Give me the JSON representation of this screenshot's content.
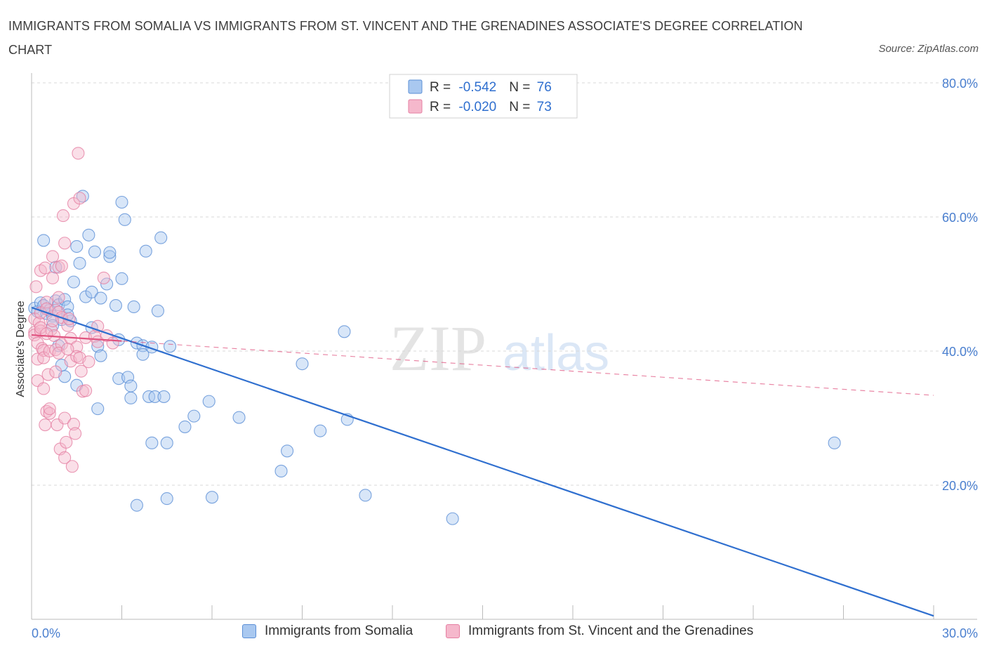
{
  "title": "IMMIGRANTS FROM SOMALIA VS IMMIGRANTS FROM ST. VINCENT AND THE GRENADINES ASSOCIATE'S DEGREE CORRELATION CHART",
  "source": "Source: ZipAtlas.com",
  "watermark": {
    "zip": "ZIP",
    "atlas": "atlas"
  },
  "colors": {
    "blue_fill": "#a9c8f0",
    "blue_stroke": "#5b8fd6",
    "blue_line": "#2f6fcf",
    "pink_fill": "#f5b8cc",
    "pink_stroke": "#e57fa2",
    "pink_line": "#e0527f",
    "axis_text": "#4a7fcf",
    "grid": "#d8d8d8"
  },
  "chart_data": {
    "type": "scatter",
    "title": "IMMIGRANTS FROM SOMALIA VS IMMIGRANTS FROM ST. VINCENT AND THE GRENADINES ASSOCIATE'S DEGREE CORRELATION CHART",
    "xlabel": "",
    "ylabel": "Associate's Degree",
    "xlim": [
      0,
      30
    ],
    "ylim": [
      0,
      80
    ],
    "x_tick_labels": [
      "0.0%",
      "30.0%"
    ],
    "y_ticks": [
      20,
      40,
      60,
      80
    ],
    "y_tick_labels": [
      "20.0%",
      "40.0%",
      "60.0%",
      "80.0%"
    ],
    "grid": true,
    "legend_stats": [
      {
        "r_label": "R = ",
        "r_value": "-0.542",
        "n_label": "N = ",
        "n_value": "76"
      },
      {
        "r_label": "R = ",
        "r_value": "-0.020",
        "n_label": "N = ",
        "n_value": "73"
      }
    ],
    "series": [
      {
        "name": "Immigrants from Somalia",
        "color": "blue",
        "trend": {
          "x": [
            0,
            30
          ],
          "y": [
            46.5,
            0.5
          ],
          "style": "solid"
        },
        "points": [
          [
            0.1,
            46.4
          ],
          [
            0.2,
            45.9
          ],
          [
            0.3,
            47.2
          ],
          [
            0.4,
            46.8
          ],
          [
            0.5,
            45.6
          ],
          [
            0.6,
            46.1
          ],
          [
            0.7,
            45.2
          ],
          [
            0.8,
            47.5
          ],
          [
            0.9,
            46.9
          ],
          [
            1.0,
            44.7
          ],
          [
            0.4,
            56.5
          ],
          [
            0.8,
            52.5
          ],
          [
            1.1,
            47.7
          ],
          [
            1.2,
            46.6
          ],
          [
            1.3,
            44.5
          ],
          [
            0.9,
            40.8
          ],
          [
            1.0,
            37.9
          ],
          [
            1.1,
            36.2
          ],
          [
            1.4,
            50.3
          ],
          [
            1.5,
            55.6
          ],
          [
            1.6,
            53.1
          ],
          [
            1.7,
            63.1
          ],
          [
            1.8,
            48.1
          ],
          [
            1.9,
            57.3
          ],
          [
            2.0,
            48.8
          ],
          [
            2.0,
            43.5
          ],
          [
            2.1,
            54.8
          ],
          [
            2.2,
            40.7
          ],
          [
            2.3,
            39.3
          ],
          [
            2.3,
            47.9
          ],
          [
            2.5,
            50.0
          ],
          [
            2.6,
            54.1
          ],
          [
            2.6,
            54.7
          ],
          [
            2.8,
            46.8
          ],
          [
            2.9,
            41.7
          ],
          [
            2.9,
            35.9
          ],
          [
            3.0,
            50.8
          ],
          [
            3.0,
            62.2
          ],
          [
            3.1,
            59.6
          ],
          [
            3.2,
            36.1
          ],
          [
            3.3,
            34.8
          ],
          [
            3.3,
            33.0
          ],
          [
            3.4,
            46.6
          ],
          [
            3.5,
            41.2
          ],
          [
            3.7,
            40.8
          ],
          [
            3.7,
            39.5
          ],
          [
            3.8,
            54.9
          ],
          [
            3.9,
            33.2
          ],
          [
            4.0,
            40.6
          ],
          [
            4.1,
            33.2
          ],
          [
            4.0,
            26.3
          ],
          [
            4.2,
            46.0
          ],
          [
            4.3,
            56.9
          ],
          [
            4.4,
            33.2
          ],
          [
            4.5,
            26.3
          ],
          [
            4.6,
            40.7
          ],
          [
            5.1,
            28.7
          ],
          [
            5.4,
            30.3
          ],
          [
            5.9,
            32.5
          ],
          [
            6.0,
            18.2
          ],
          [
            6.9,
            30.1
          ],
          [
            8.3,
            22.1
          ],
          [
            8.5,
            25.1
          ],
          [
            9.0,
            38.1
          ],
          [
            9.6,
            28.1
          ],
          [
            10.4,
            42.9
          ],
          [
            10.5,
            29.8
          ],
          [
            11.1,
            18.5
          ],
          [
            14.0,
            15.0
          ],
          [
            26.7,
            26.3
          ],
          [
            3.5,
            17.0
          ],
          [
            4.5,
            18.0
          ],
          [
            0.7,
            43.8
          ],
          [
            1.5,
            34.9
          ],
          [
            2.2,
            31.4
          ],
          [
            1.2,
            45.4
          ]
        ]
      },
      {
        "name": "Immigrants from St. Vincent and the Grenadines",
        "color": "pink",
        "trend": {
          "x": [
            0,
            3.0
          ],
          "y": [
            42.4,
            41.5
          ],
          "style": "solid",
          "extended": {
            "x": [
              0,
              30
            ],
            "y": [
              42.4,
              33.4
            ],
            "style": "dashed"
          }
        },
        "points": [
          [
            0.1,
            44.8
          ],
          [
            0.1,
            42.8
          ],
          [
            0.1,
            42.4
          ],
          [
            0.15,
            49.6
          ],
          [
            0.2,
            38.8
          ],
          [
            0.2,
            35.6
          ],
          [
            0.2,
            41.2
          ],
          [
            0.25,
            44.2
          ],
          [
            0.3,
            52.0
          ],
          [
            0.3,
            43.0
          ],
          [
            0.3,
            45.7
          ],
          [
            0.35,
            40.4
          ],
          [
            0.4,
            40.1
          ],
          [
            0.4,
            39.0
          ],
          [
            0.4,
            34.4
          ],
          [
            0.45,
            29.0
          ],
          [
            0.45,
            52.4
          ],
          [
            0.5,
            47.3
          ],
          [
            0.5,
            46.3
          ],
          [
            0.5,
            31.0
          ],
          [
            0.55,
            36.5
          ],
          [
            0.6,
            30.7
          ],
          [
            0.6,
            31.4
          ],
          [
            0.6,
            40.0
          ],
          [
            0.65,
            43.2
          ],
          [
            0.7,
            54.1
          ],
          [
            0.7,
            50.9
          ],
          [
            0.75,
            42.3
          ],
          [
            0.8,
            36.9
          ],
          [
            0.8,
            40.2
          ],
          [
            0.8,
            46.1
          ],
          [
            0.85,
            29.0
          ],
          [
            0.9,
            48.0
          ],
          [
            0.9,
            45.8
          ],
          [
            0.9,
            52.5
          ],
          [
            0.95,
            25.4
          ],
          [
            1.0,
            52.7
          ],
          [
            1.0,
            45.0
          ],
          [
            1.0,
            41.0
          ],
          [
            1.05,
            60.2
          ],
          [
            1.1,
            56.1
          ],
          [
            1.1,
            30.0
          ],
          [
            1.1,
            24.1
          ],
          [
            1.15,
            26.4
          ],
          [
            1.2,
            43.8
          ],
          [
            1.25,
            44.8
          ],
          [
            1.3,
            41.9
          ],
          [
            1.3,
            38.5
          ],
          [
            1.35,
            22.8
          ],
          [
            1.4,
            62.0
          ],
          [
            1.4,
            29.1
          ],
          [
            1.45,
            27.7
          ],
          [
            1.5,
            40.6
          ],
          [
            1.5,
            39.2
          ],
          [
            1.55,
            69.5
          ],
          [
            1.6,
            62.8
          ],
          [
            1.6,
            39.0
          ],
          [
            1.65,
            37.0
          ],
          [
            1.7,
            34.0
          ],
          [
            1.8,
            34.1
          ],
          [
            1.8,
            42.0
          ],
          [
            1.9,
            38.4
          ],
          [
            2.1,
            42.2
          ],
          [
            2.2,
            43.7
          ],
          [
            2.2,
            41.4
          ],
          [
            2.4,
            50.9
          ],
          [
            2.5,
            42.3
          ],
          [
            2.7,
            41.2
          ],
          [
            0.3,
            43.5
          ],
          [
            0.5,
            42.6
          ],
          [
            0.7,
            44.5
          ],
          [
            0.9,
            39.7
          ],
          [
            1.2,
            40.3
          ]
        ]
      }
    ]
  },
  "legend_bottom": [
    {
      "label": "Immigrants from Somalia",
      "color": "blue"
    },
    {
      "label": "Immigrants from St. Vincent and the Grenadines",
      "color": "pink"
    }
  ]
}
